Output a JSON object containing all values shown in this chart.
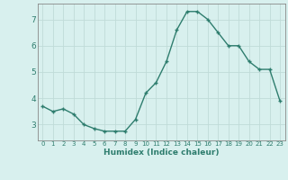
{
  "x": [
    0,
    1,
    2,
    3,
    4,
    5,
    6,
    7,
    8,
    9,
    10,
    11,
    12,
    13,
    14,
    15,
    16,
    17,
    18,
    19,
    20,
    21,
    22,
    23
  ],
  "y": [
    3.7,
    3.5,
    3.6,
    3.4,
    3.0,
    2.85,
    2.75,
    2.75,
    2.75,
    3.2,
    4.2,
    4.6,
    5.4,
    6.6,
    7.3,
    7.3,
    7.0,
    6.5,
    6.0,
    6.0,
    5.4,
    5.1,
    5.1,
    3.9
  ],
  "xlabel": "Humidex (Indice chaleur)",
  "line_color": "#2e7d6e",
  "bg_color": "#d8f0ee",
  "grid_color": "#c0dbd8",
  "xlim": [
    -0.5,
    23.5
  ],
  "ylim": [
    2.4,
    7.6
  ],
  "yticks": [
    3,
    4,
    5,
    6,
    7
  ],
  "xticks": [
    0,
    1,
    2,
    3,
    4,
    5,
    6,
    7,
    8,
    9,
    10,
    11,
    12,
    13,
    14,
    15,
    16,
    17,
    18,
    19,
    20,
    21,
    22,
    23
  ],
  "marker_size": 2.5,
  "line_width": 1.0
}
